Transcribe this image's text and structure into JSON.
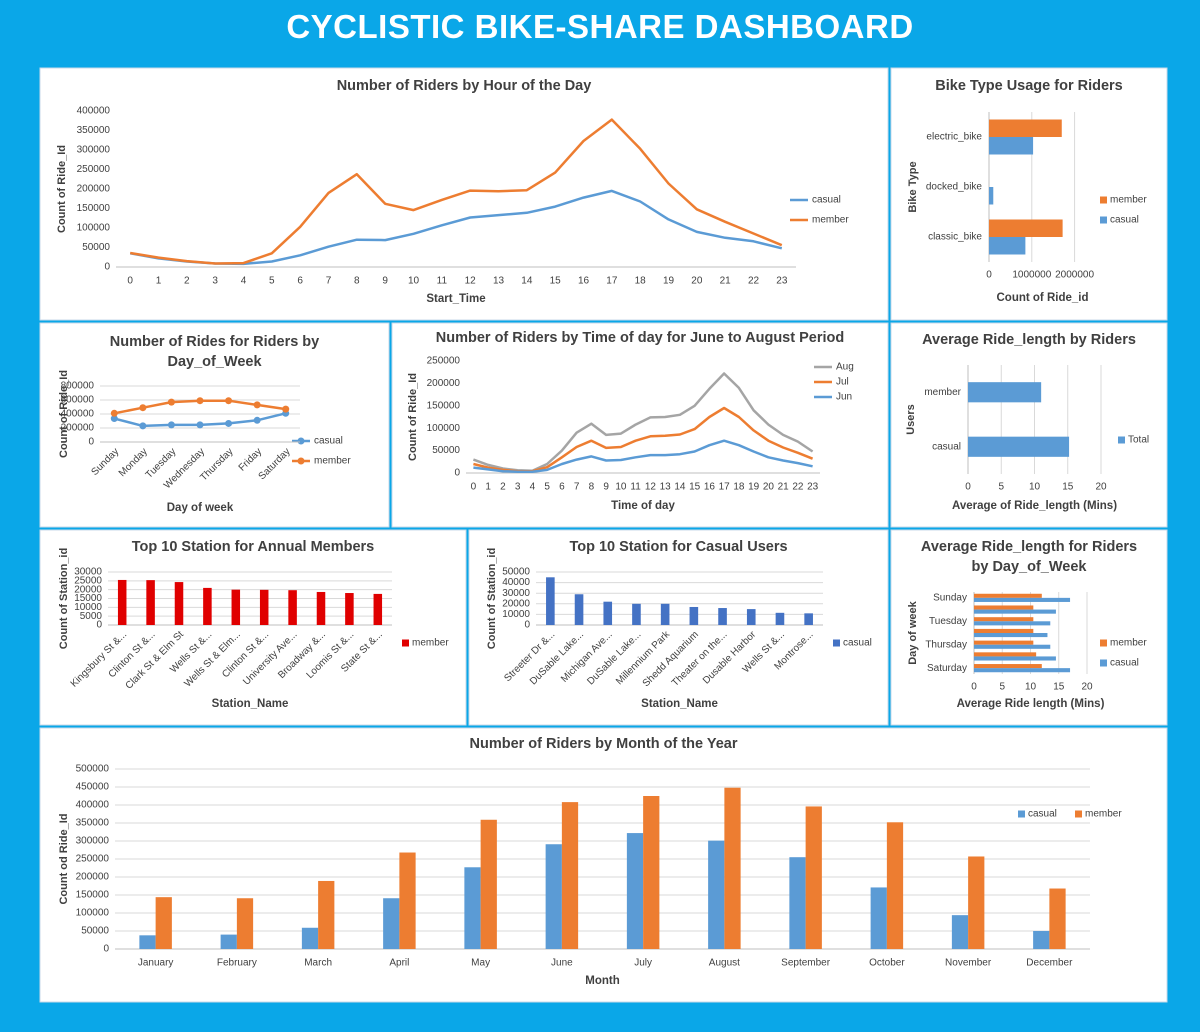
{
  "header": {
    "title": "CYCLISTIC BIKE-SHARE DASHBOARD"
  },
  "chart_data": [
    {
      "type": "line",
      "title": "Number of Riders by Hour of the Day",
      "x_label": "Start_Time",
      "y_label": "Count of Ride_Id",
      "x": [
        0,
        1,
        2,
        3,
        4,
        5,
        6,
        7,
        8,
        9,
        10,
        11,
        12,
        13,
        14,
        15,
        16,
        17,
        18,
        19,
        20,
        21,
        22,
        23
      ],
      "xlim": [
        0,
        23
      ],
      "ylim": [
        0,
        400000
      ],
      "yticks": [
        0,
        50000,
        100000,
        150000,
        200000,
        250000,
        300000,
        350000,
        400000
      ],
      "grid": false,
      "legend": "right",
      "series": [
        {
          "name": "casual",
          "color": "#5b9bd5",
          "values": [
            35000,
            22000,
            14000,
            9000,
            8000,
            14000,
            30000,
            52000,
            70000,
            69000,
            85000,
            107000,
            127000,
            133000,
            139000,
            155000,
            178000,
            195000,
            168000,
            122000,
            90000,
            75000,
            66000,
            48000
          ]
        },
        {
          "name": "member",
          "color": "#ed7d31",
          "values": [
            36000,
            24000,
            15000,
            9000,
            10000,
            35000,
            103000,
            190000,
            238000,
            162000,
            146000,
            172000,
            196000,
            194000,
            197000,
            242000,
            323000,
            378000,
            303000,
            214000,
            148000,
            116000,
            86000,
            56000
          ]
        }
      ]
    },
    {
      "type": "bar",
      "horizontal": true,
      "title": "Bike Type Usage for Riders",
      "x_label": "Count of Ride_id",
      "y_label": "Bike Type",
      "categories": [
        "electric_bike",
        "docked_bike",
        "classic_bike"
      ],
      "xlim": [
        0,
        2500000
      ],
      "xticks": [
        0,
        1000000,
        2000000
      ],
      "grid": true,
      "legend": "right",
      "series": [
        {
          "name": "member",
          "color": "#ed7d31",
          "values": [
            1700000,
            0,
            1720000
          ]
        },
        {
          "name": "casual",
          "color": "#5b9bd5",
          "values": [
            1030000,
            100000,
            850000
          ]
        }
      ]
    },
    {
      "type": "line",
      "markers": true,
      "title": "Number of Rides for Riders by Day_of_Week",
      "x_label": "Day of week",
      "y_label": "Count of Ride_Id",
      "categories": [
        "Sunday",
        "Monday",
        "Tuesday",
        "Wednesday",
        "Thursday",
        "Friday",
        "Saturday"
      ],
      "ylim": [
        0,
        800000
      ],
      "yticks": [
        0,
        200000,
        400000,
        600000,
        800000
      ],
      "grid": true,
      "legend": "right",
      "series": [
        {
          "name": "casual",
          "color": "#5b9bd5",
          "values": [
            335000,
            230000,
            245000,
            245000,
            265000,
            310000,
            410000
          ]
        },
        {
          "name": "member",
          "color": "#ed7d31",
          "values": [
            410000,
            490000,
            570000,
            590000,
            590000,
            530000,
            470000
          ]
        }
      ]
    },
    {
      "type": "line",
      "title": "Number of Riders by Time of day for June to August Period",
      "x_label": "Time of day",
      "y_label": "Count of Ride_Id",
      "x": [
        0,
        1,
        2,
        3,
        4,
        5,
        6,
        7,
        8,
        9,
        10,
        11,
        12,
        13,
        14,
        15,
        16,
        17,
        18,
        19,
        20,
        21,
        22,
        23
      ],
      "xlim": [
        0,
        23
      ],
      "ylim": [
        0,
        250000
      ],
      "yticks": [
        0,
        50000,
        100000,
        150000,
        200000,
        250000
      ],
      "grid": false,
      "legend": "right",
      "series": [
        {
          "name": "Aug",
          "color": "#a5a5a5",
          "values": [
            30000,
            18000,
            10000,
            6000,
            5000,
            20000,
            50000,
            90000,
            110000,
            85000,
            88000,
            108000,
            124000,
            125000,
            130000,
            150000,
            188000,
            222000,
            190000,
            140000,
            108000,
            85000,
            70000,
            48000
          ]
        },
        {
          "name": "Jul",
          "color": "#ed7d31",
          "values": [
            20000,
            12000,
            7000,
            4000,
            4000,
            13000,
            35000,
            58000,
            72000,
            56000,
            58000,
            72000,
            82000,
            83000,
            86000,
            98000,
            125000,
            145000,
            125000,
            95000,
            72000,
            57000,
            45000,
            32000
          ]
        },
        {
          "name": "Jun",
          "color": "#5b9bd5",
          "values": [
            12000,
            8000,
            4000,
            3000,
            3000,
            7000,
            20000,
            30000,
            37000,
            28000,
            29000,
            35000,
            40000,
            40000,
            42000,
            48000,
            62000,
            72000,
            62000,
            48000,
            35000,
            28000,
            22000,
            15000
          ]
        }
      ]
    },
    {
      "type": "bar",
      "horizontal": true,
      "title": "Average Ride_length by Riders",
      "x_label": "Average of Ride_length (Mins)",
      "y_label": "Users",
      "categories": [
        "member",
        "casual"
      ],
      "xlim": [
        0,
        20
      ],
      "xticks": [
        0,
        5,
        10,
        15,
        20
      ],
      "grid": true,
      "legend": "right",
      "series": [
        {
          "name": "Total",
          "color": "#5b9bd5",
          "values": [
            11,
            15.2
          ]
        }
      ]
    },
    {
      "type": "bar",
      "title": "Top 10 Station for Annual Members",
      "x_label": "Station_Name",
      "y_label": "Count of Station_id",
      "categories": [
        "Kingsbury St &...",
        "Clinton St &...",
        "Clark St & Elm St",
        "Wells St &...",
        "Wells St & Elm...",
        "Clinton St &...",
        "University Ave...",
        "Broadway &...",
        "Loomis St &...",
        "State St &..."
      ],
      "ylim": [
        0,
        30000
      ],
      "yticks": [
        0,
        5000,
        10000,
        15000,
        20000,
        25000,
        30000
      ],
      "grid": true,
      "legend": "right",
      "series": [
        {
          "name": "member",
          "color": "#e00000",
          "values": [
            25500,
            25400,
            24300,
            21000,
            20000,
            19900,
            19700,
            18700,
            18100,
            17600
          ]
        }
      ]
    },
    {
      "type": "bar",
      "title": "Top 10 Station for Casual Users",
      "x_label": "Station_Name",
      "y_label": "Count of Station_id",
      "categories": [
        "Streeter Dr &...",
        "DuSable Lake...",
        "Michigan Ave...",
        "DuSable Lake...",
        "Millennium Park",
        "Shedd Aquarium",
        "Theater on the...",
        "Dusable Harbor",
        "Wells St &...",
        "Montrose..."
      ],
      "ylim": [
        0,
        50000
      ],
      "yticks": [
        0,
        10000,
        20000,
        30000,
        40000,
        50000
      ],
      "grid": true,
      "legend": "right",
      "series": [
        {
          "name": "casual",
          "color": "#4472c4",
          "values": [
            45000,
            29000,
            22000,
            20000,
            20000,
            17000,
            16000,
            15000,
            11500,
            11000
          ]
        }
      ]
    },
    {
      "type": "bar",
      "horizontal": true,
      "title": "Average Ride_length for Riders by Day_of_Week",
      "x_label": "Average Ride length (Mins)",
      "y_label": "Day of week",
      "categories": [
        "Sunday",
        null,
        "Tuesday",
        null,
        "Thursday",
        null,
        "Saturday"
      ],
      "xlim": [
        0,
        20
      ],
      "xticks": [
        0,
        5,
        10,
        15,
        20
      ],
      "grid": true,
      "legend": "right",
      "series": [
        {
          "name": "member",
          "color": "#ed7d31",
          "values": [
            12,
            10.5,
            10.5,
            10.5,
            10.5,
            11,
            12
          ]
        },
        {
          "name": "casual",
          "color": "#5b9bd5",
          "values": [
            17,
            14.5,
            13.5,
            13,
            13.5,
            14.5,
            17
          ]
        }
      ]
    },
    {
      "type": "bar",
      "title": "Number of Riders by Month of the Year",
      "x_label": "Month",
      "y_label": "Count od Ride_Id",
      "categories": [
        "January",
        "February",
        "March",
        "April",
        "May",
        "June",
        "July",
        "August",
        "September",
        "October",
        "November",
        "December"
      ],
      "ylim": [
        0,
        500000
      ],
      "yticks": [
        0,
        50000,
        100000,
        150000,
        200000,
        250000,
        300000,
        350000,
        400000,
        450000,
        500000
      ],
      "grid": true,
      "legend": "top-right",
      "series": [
        {
          "name": "casual",
          "color": "#5b9bd5",
          "values": [
            38000,
            40000,
            59000,
            141000,
            227000,
            291000,
            322000,
            301000,
            255000,
            171000,
            94000,
            50000
          ]
        },
        {
          "name": "member",
          "color": "#ed7d31",
          "values": [
            144000,
            141000,
            189000,
            268000,
            359000,
            408000,
            425000,
            448000,
            396000,
            352000,
            257000,
            168000
          ]
        }
      ]
    }
  ]
}
